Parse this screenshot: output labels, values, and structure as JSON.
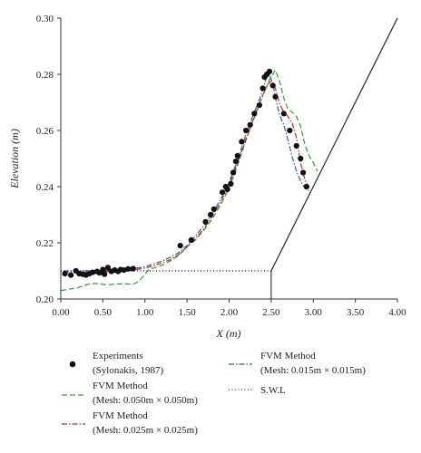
{
  "chart_data": {
    "type": "line",
    "xlabel": "X (m)",
    "ylabel": "Elevation (m)",
    "xlim": [
      0,
      4
    ],
    "ylim": [
      0.2,
      0.3
    ],
    "x_ticks": [
      "0.00",
      "0.50",
      "1.00",
      "1.50",
      "2.00",
      "2.50",
      "3.00",
      "3.50",
      "4.00"
    ],
    "y_ticks": [
      "0.20",
      "0.22",
      "0.24",
      "0.26",
      "0.28",
      "0.30"
    ],
    "grid": false,
    "legend_position": "bottom",
    "series": [
      {
        "key": "exp",
        "name": "Experiments",
        "name2": "(Sylonakis, 1987)",
        "style": "marker",
        "color": "#111111",
        "points": [
          [
            0.05,
            0.209
          ],
          [
            0.12,
            0.2085
          ],
          [
            0.18,
            0.21
          ],
          [
            0.22,
            0.209
          ],
          [
            0.26,
            0.2088
          ],
          [
            0.3,
            0.2085
          ],
          [
            0.34,
            0.209
          ],
          [
            0.38,
            0.2095
          ],
          [
            0.43,
            0.2098
          ],
          [
            0.46,
            0.2093
          ],
          [
            0.5,
            0.2105
          ],
          [
            0.52,
            0.2088
          ],
          [
            0.56,
            0.2112
          ],
          [
            0.6,
            0.2098
          ],
          [
            0.64,
            0.2103
          ],
          [
            0.68,
            0.2098
          ],
          [
            0.71,
            0.2105
          ],
          [
            0.75,
            0.2103
          ],
          [
            0.8,
            0.2107
          ],
          [
            0.86,
            0.2108
          ],
          [
            1.42,
            0.219
          ],
          [
            1.55,
            0.221
          ],
          [
            1.72,
            0.2275
          ],
          [
            1.78,
            0.23
          ],
          [
            1.82,
            0.232
          ],
          [
            1.92,
            0.238
          ],
          [
            1.96,
            0.24
          ],
          [
            1.98,
            0.239
          ],
          [
            2.02,
            0.241
          ],
          [
            2.05,
            0.245
          ],
          [
            2.08,
            0.249
          ],
          [
            2.1,
            0.251
          ],
          [
            2.15,
            0.256
          ],
          [
            2.2,
            0.26
          ],
          [
            2.25,
            0.262
          ],
          [
            2.3,
            0.266
          ],
          [
            2.36,
            0.269
          ],
          [
            2.4,
            0.275
          ],
          [
            2.42,
            0.279
          ],
          [
            2.45,
            0.28
          ],
          [
            2.48,
            0.281
          ],
          [
            2.52,
            0.276
          ],
          [
            2.55,
            0.272
          ],
          [
            2.65,
            0.266
          ],
          [
            2.72,
            0.26
          ],
          [
            2.8,
            0.2545
          ],
          [
            2.85,
            0.25
          ],
          [
            2.88,
            0.245
          ],
          [
            2.92,
            0.24
          ]
        ]
      },
      {
        "key": "mesh050",
        "name": "FVM Method",
        "name2": "(Mesh: 0.050m × 0.050m)",
        "style": "dashed",
        "color": "#2ea02e",
        "points": [
          [
            0,
            0.203
          ],
          [
            0.1,
            0.2035
          ],
          [
            0.2,
            0.204
          ],
          [
            0.3,
            0.205
          ],
          [
            0.35,
            0.2055
          ],
          [
            0.45,
            0.2055
          ],
          [
            0.55,
            0.205
          ],
          [
            0.65,
            0.2053
          ],
          [
            0.75,
            0.2055
          ],
          [
            0.85,
            0.2052
          ],
          [
            0.9,
            0.2058
          ],
          [
            0.95,
            0.207
          ],
          [
            1.0,
            0.209
          ],
          [
            1.05,
            0.2105
          ],
          [
            1.1,
            0.211
          ],
          [
            1.2,
            0.212
          ],
          [
            1.3,
            0.2135
          ],
          [
            1.4,
            0.2155
          ],
          [
            1.5,
            0.2185
          ],
          [
            1.6,
            0.221
          ],
          [
            1.7,
            0.2245
          ],
          [
            1.8,
            0.2285
          ],
          [
            1.9,
            0.2335
          ],
          [
            2.0,
            0.2395
          ],
          [
            2.1,
            0.2475
          ],
          [
            2.2,
            0.2565
          ],
          [
            2.3,
            0.2645
          ],
          [
            2.4,
            0.2725
          ],
          [
            2.48,
            0.278
          ],
          [
            2.55,
            0.2815
          ],
          [
            2.6,
            0.2775
          ],
          [
            2.65,
            0.2715
          ],
          [
            2.7,
            0.2675
          ],
          [
            2.75,
            0.2665
          ],
          [
            2.8,
            0.265
          ],
          [
            2.85,
            0.2615
          ],
          [
            2.9,
            0.255
          ],
          [
            2.95,
            0.251
          ],
          [
            3.0,
            0.2485
          ],
          [
            3.05,
            0.2455
          ]
        ]
      },
      {
        "key": "mesh025",
        "name": "FVM Method",
        "name2": "(Mesh: 0.025m × 0.025m)",
        "style": "dashdot",
        "color": "#c8281e",
        "points": [
          [
            0.03,
            0.2095
          ],
          [
            0.2,
            0.2095
          ],
          [
            0.4,
            0.2095
          ],
          [
            0.6,
            0.2098
          ],
          [
            0.8,
            0.21
          ],
          [
            1.0,
            0.211
          ],
          [
            1.1,
            0.2118
          ],
          [
            1.2,
            0.2128
          ],
          [
            1.3,
            0.214
          ],
          [
            1.4,
            0.2158
          ],
          [
            1.5,
            0.2185
          ],
          [
            1.6,
            0.2215
          ],
          [
            1.7,
            0.225
          ],
          [
            1.8,
            0.2295
          ],
          [
            1.9,
            0.2345
          ],
          [
            2.0,
            0.2405
          ],
          [
            2.1,
            0.2485
          ],
          [
            2.2,
            0.257
          ],
          [
            2.3,
            0.265
          ],
          [
            2.4,
            0.2725
          ],
          [
            2.46,
            0.2765
          ],
          [
            2.5,
            0.2775
          ],
          [
            2.55,
            0.275
          ],
          [
            2.6,
            0.2695
          ],
          [
            2.65,
            0.2665
          ],
          [
            2.7,
            0.265
          ],
          [
            2.75,
            0.2625
          ],
          [
            2.8,
            0.2575
          ],
          [
            2.85,
            0.2485
          ],
          [
            2.9,
            0.2425
          ],
          [
            2.95,
            0.2395
          ]
        ]
      },
      {
        "key": "mesh015",
        "name": "FVM Method",
        "name2": "(Mesh: 0.015m × 0.015m)",
        "style": "dashdot",
        "color": "#2a5cc8",
        "points": [
          [
            0.03,
            0.21
          ],
          [
            0.2,
            0.21
          ],
          [
            0.4,
            0.21
          ],
          [
            0.6,
            0.2102
          ],
          [
            0.8,
            0.2105
          ],
          [
            1.0,
            0.2115
          ],
          [
            1.1,
            0.2125
          ],
          [
            1.2,
            0.2135
          ],
          [
            1.3,
            0.2148
          ],
          [
            1.4,
            0.2165
          ],
          [
            1.5,
            0.219
          ],
          [
            1.6,
            0.2225
          ],
          [
            1.7,
            0.226
          ],
          [
            1.8,
            0.2305
          ],
          [
            1.9,
            0.2355
          ],
          [
            2.0,
            0.2415
          ],
          [
            2.1,
            0.2495
          ],
          [
            2.2,
            0.2585
          ],
          [
            2.3,
            0.2665
          ],
          [
            2.38,
            0.2725
          ],
          [
            2.44,
            0.2785
          ],
          [
            2.48,
            0.28
          ],
          [
            2.52,
            0.2765
          ],
          [
            2.56,
            0.2705
          ],
          [
            2.6,
            0.2655
          ],
          [
            2.65,
            0.262
          ],
          [
            2.7,
            0.2565
          ],
          [
            2.75,
            0.2505
          ],
          [
            2.8,
            0.2455
          ],
          [
            2.85,
            0.242
          ],
          [
            2.9,
            0.2395
          ],
          [
            2.95,
            0.2385
          ]
        ]
      },
      {
        "key": "swl",
        "name": "S.W.L",
        "style": "dotted",
        "color": "#111111",
        "points": [
          [
            0,
            0.21
          ],
          [
            2.5,
            0.21
          ]
        ]
      }
    ],
    "slope_line": {
      "points": [
        [
          2.5,
          0.21
        ],
        [
          4.0,
          0.3
        ]
      ],
      "color": "#111111"
    },
    "slope_toe": {
      "points": [
        [
          2.5,
          0.2
        ],
        [
          2.5,
          0.21
        ]
      ],
      "color": "#111111"
    }
  }
}
